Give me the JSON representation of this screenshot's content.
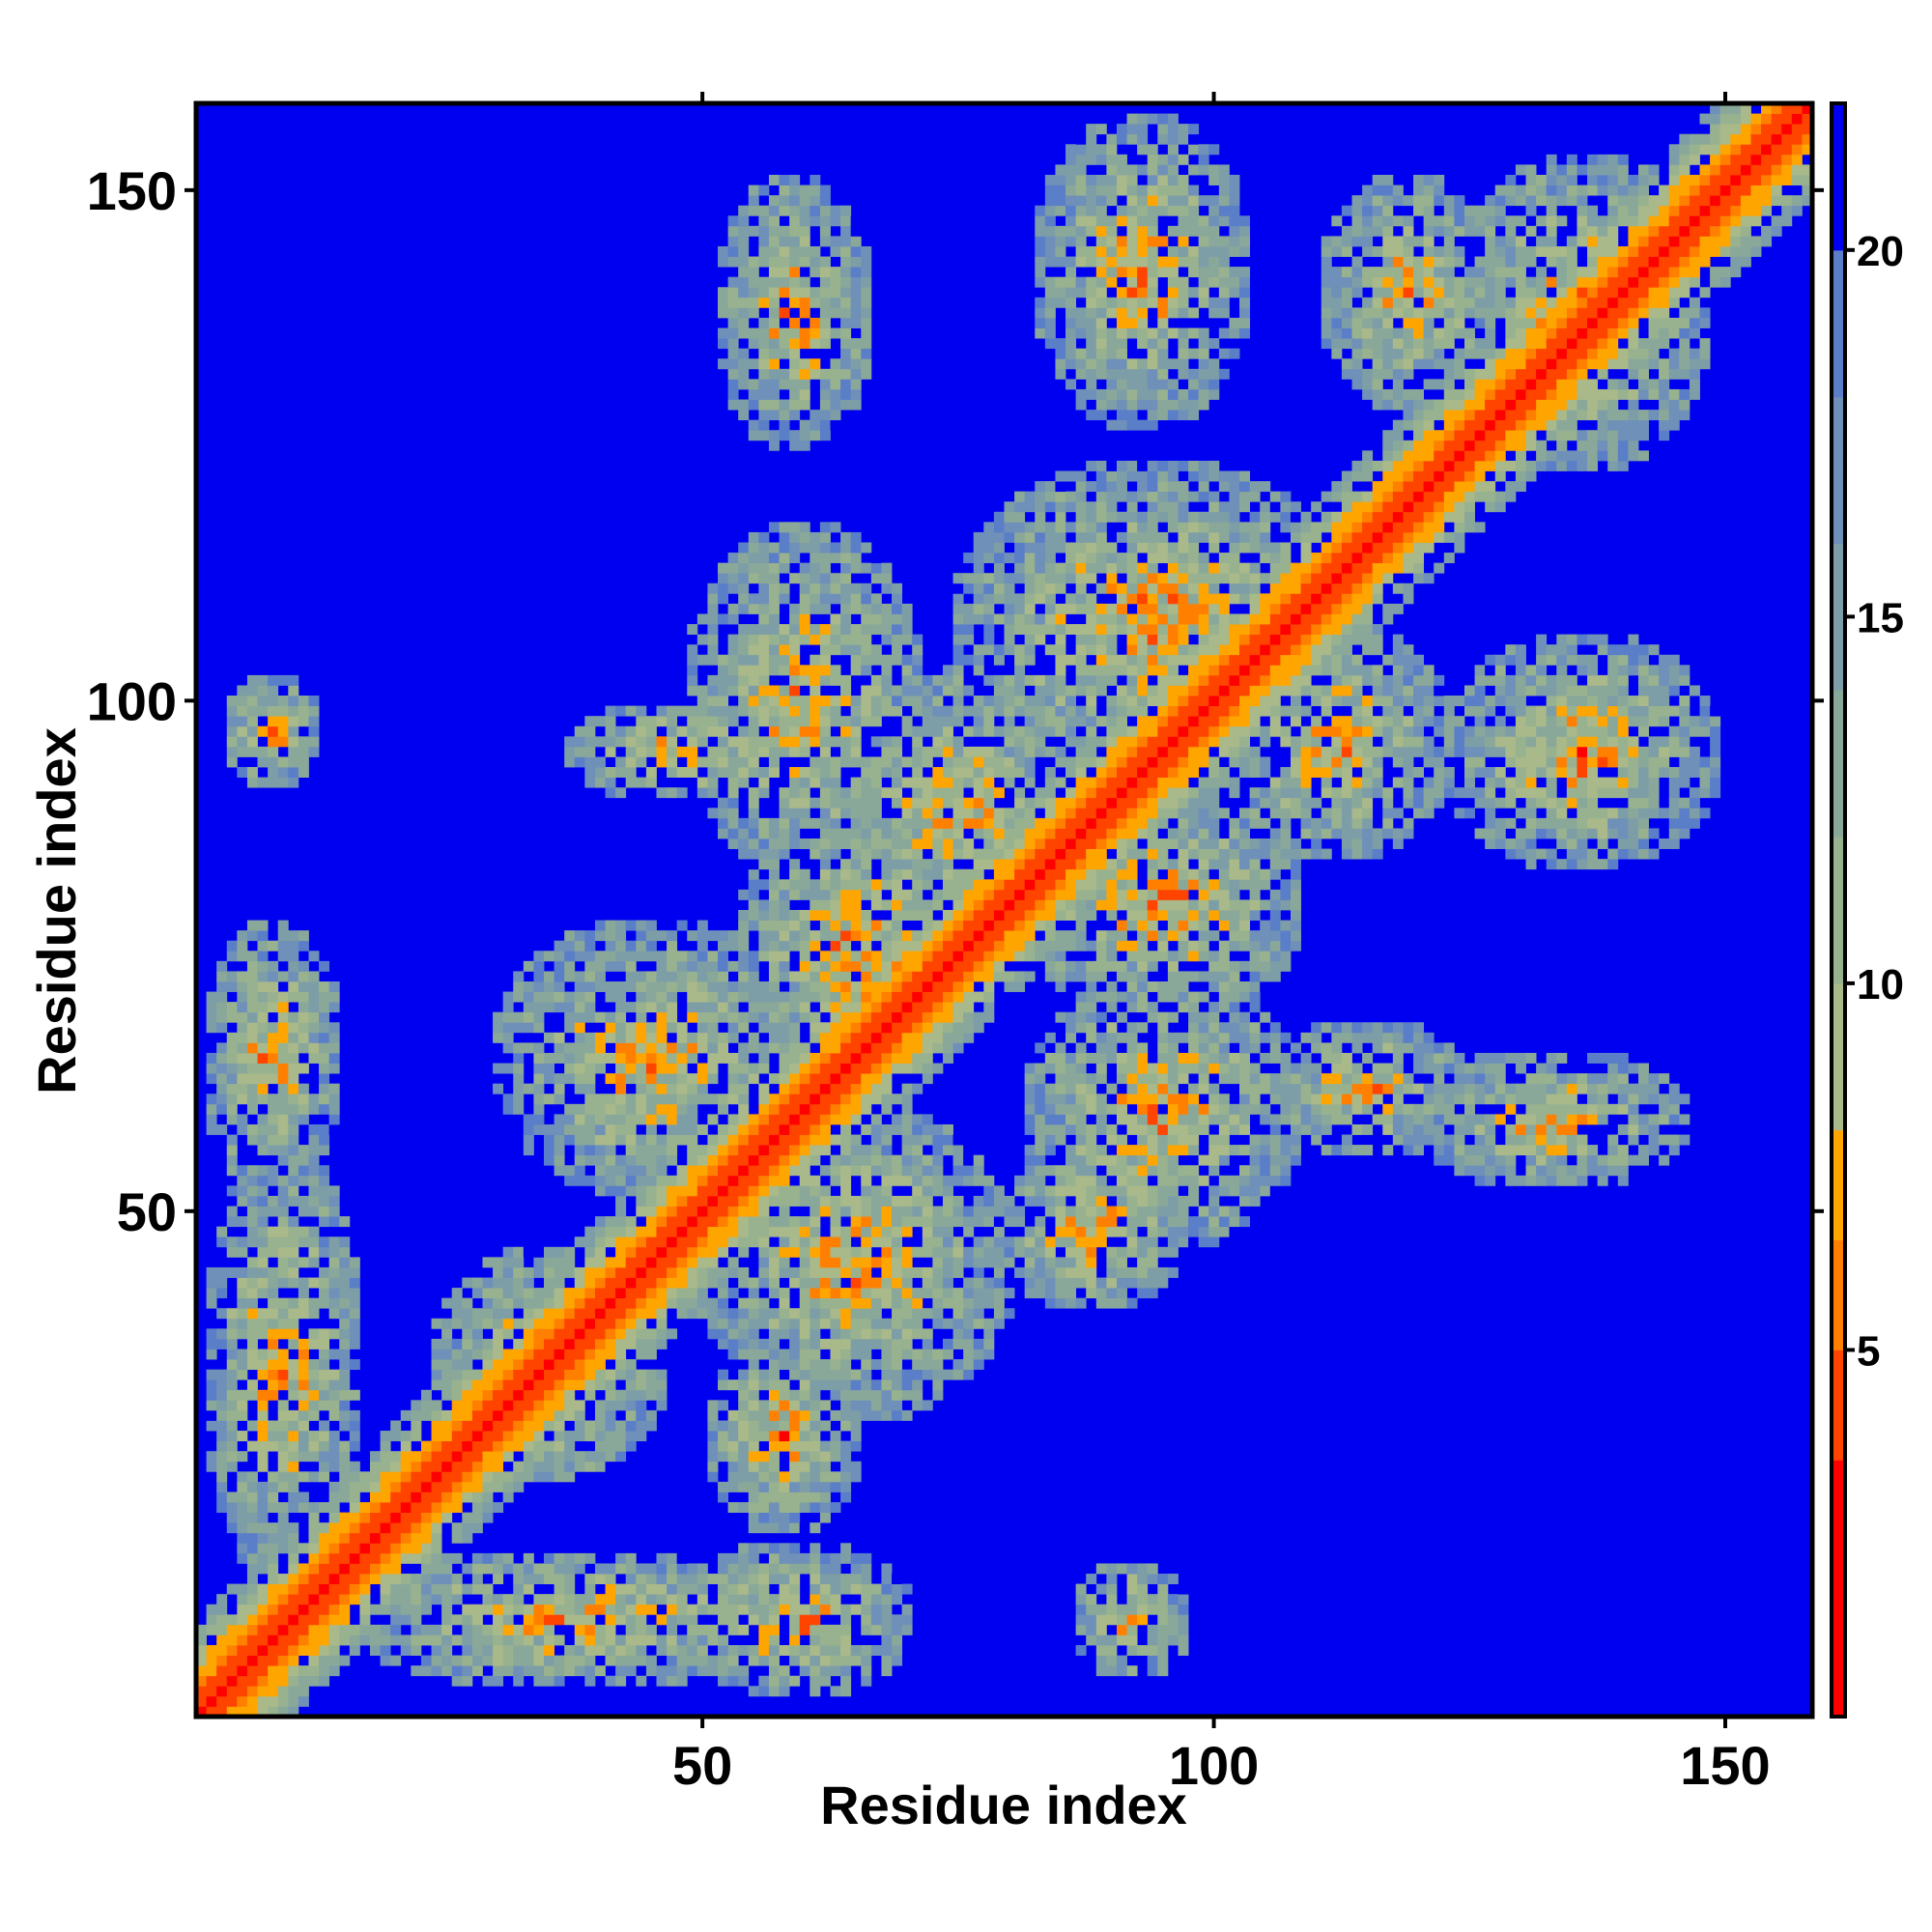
{
  "chart_data": {
    "type": "heatmap",
    "title": "",
    "xlabel": "Residue index",
    "ylabel": "Residue index",
    "n_residues": 158,
    "xlim": [
      1,
      158
    ],
    "ylim": [
      1,
      158
    ],
    "x_ticks": [
      50,
      100,
      150
    ],
    "y_ticks": [
      50,
      100,
      150
    ],
    "x_tick_labels": [
      "50",
      "100",
      "150"
    ],
    "y_tick_labels": [
      "50",
      "100",
      "150"
    ],
    "value_range": [
      0,
      22
    ],
    "colorbar": {
      "ticks": [
        5,
        10,
        15,
        20
      ],
      "tick_labels": [
        "5",
        "10",
        "15",
        "20"
      ],
      "range": [
        0,
        22
      ]
    },
    "color_scale": [
      {
        "max": 3.5,
        "color": "#ff0000"
      },
      {
        "max": 5.0,
        "color": "#ff4400"
      },
      {
        "max": 6.5,
        "color": "#ff8000"
      },
      {
        "max": 8.0,
        "color": "#ffa500"
      },
      {
        "max": 10.0,
        "color": "#a9b98a"
      },
      {
        "max": 12.0,
        "color": "#98b290"
      },
      {
        "max": 14.0,
        "color": "#8aa89a"
      },
      {
        "max": 16.0,
        "color": "#7d9ea6"
      },
      {
        "max": 18.0,
        "color": "#6f90b8"
      },
      {
        "max": 20.0,
        "color": "#5a7ec8"
      },
      {
        "max": 22.0,
        "color": "#0000f0"
      }
    ],
    "background_color": "#0000f0",
    "contact_clusters": [
      {
        "x": 59,
        "y": 138,
        "rx": 8,
        "ry": 14
      },
      {
        "x": 93,
        "y": 142,
        "rx": 11,
        "ry": 16
      },
      {
        "x": 119,
        "y": 140,
        "rx": 9,
        "ry": 12
      },
      {
        "x": 136,
        "y": 138,
        "rx": 13,
        "ry": 16
      },
      {
        "x": 94,
        "y": 108,
        "rx": 20,
        "ry": 16
      },
      {
        "x": 60,
        "y": 100,
        "rx": 12,
        "ry": 18
      },
      {
        "x": 136,
        "y": 95,
        "rx": 14,
        "ry": 12
      },
      {
        "x": 112,
        "y": 96,
        "rx": 12,
        "ry": 12
      },
      {
        "x": 95,
        "y": 80,
        "rx": 14,
        "ry": 12
      },
      {
        "x": 75,
        "y": 90,
        "rx": 12,
        "ry": 14
      },
      {
        "x": 95,
        "y": 60,
        "rx": 14,
        "ry": 14
      },
      {
        "x": 65,
        "y": 75,
        "rx": 12,
        "ry": 16
      },
      {
        "x": 65,
        "y": 45,
        "rx": 16,
        "ry": 16
      },
      {
        "x": 45,
        "y": 65,
        "rx": 16,
        "ry": 14
      },
      {
        "x": 133,
        "y": 59,
        "rx": 14,
        "ry": 7
      },
      {
        "x": 115,
        "y": 62,
        "rx": 10,
        "ry": 7
      },
      {
        "x": 8,
        "y": 97,
        "rx": 5,
        "ry": 6
      },
      {
        "x": 8,
        "y": 65,
        "rx": 7,
        "ry": 14
      },
      {
        "x": 9,
        "y": 35,
        "rx": 8,
        "ry": 22
      },
      {
        "x": 37,
        "y": 10,
        "rx": 22,
        "ry": 7
      },
      {
        "x": 59,
        "y": 10,
        "rx": 12,
        "ry": 8
      },
      {
        "x": 92,
        "y": 10,
        "rx": 6,
        "ry": 6
      },
      {
        "x": 35,
        "y": 35,
        "rx": 12,
        "ry": 12
      },
      {
        "x": 58,
        "y": 28,
        "rx": 8,
        "ry": 10
      },
      {
        "x": 88,
        "y": 48,
        "rx": 10,
        "ry": 8
      },
      {
        "x": 48,
        "y": 95,
        "rx": 12,
        "ry": 5
      }
    ]
  }
}
